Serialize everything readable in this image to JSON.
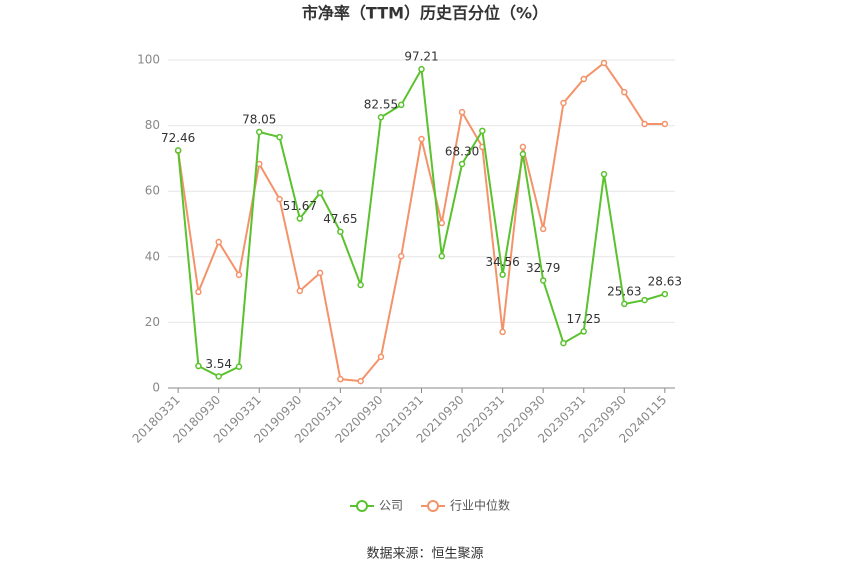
{
  "chart_data": {
    "type": "line",
    "title": "市净率（TTM）历史百分位（%）",
    "categories": [
      "20180331",
      null,
      "20180930",
      null,
      "20190331",
      null,
      "20190930",
      null,
      "20200331",
      null,
      "20200930",
      null,
      "20210331",
      null,
      "20210930",
      null,
      "20220331",
      null,
      "20220930",
      null,
      "20230331",
      null,
      "20230930",
      null,
      "20240115"
    ],
    "series": [
      {
        "name": "公司",
        "color": "#5ac22e",
        "values": [
          72.46,
          6.7,
          3.54,
          6.5,
          78.05,
          76.5,
          51.67,
          59.5,
          47.65,
          31.4,
          82.55,
          86.3,
          97.21,
          40.2,
          68.3,
          78.4,
          34.56,
          71.3,
          32.79,
          13.7,
          17.25,
          65.2,
          25.63,
          26.8,
          28.63
        ],
        "value_labels": [
          "72.46",
          null,
          "3.54",
          null,
          "78.05",
          null,
          "51.67",
          null,
          "47.65",
          null,
          "82.55",
          null,
          "97.21",
          null,
          "68.30",
          null,
          "34.56",
          null,
          "32.79",
          null,
          "17.25",
          null,
          "25.63",
          null,
          "28.63"
        ]
      },
      {
        "name": "行业中位数",
        "color": "#f4936a",
        "values": [
          72.3,
          29.3,
          44.5,
          34.5,
          68.3,
          57.6,
          29.6,
          35.1,
          2.7,
          2.1,
          9.5,
          40.2,
          75.9,
          50.3,
          84.1,
          73.5,
          17.1,
          73.5,
          48.5,
          86.9,
          94.2,
          99.1,
          90.2,
          80.5,
          80.5
        ]
      }
    ],
    "ylim": [
      0,
      100
    ],
    "yticks": [
      0,
      20,
      40,
      60,
      80,
      100
    ],
    "grid": true,
    "legend": "bottom",
    "source": "数据来源：恒生聚源"
  }
}
